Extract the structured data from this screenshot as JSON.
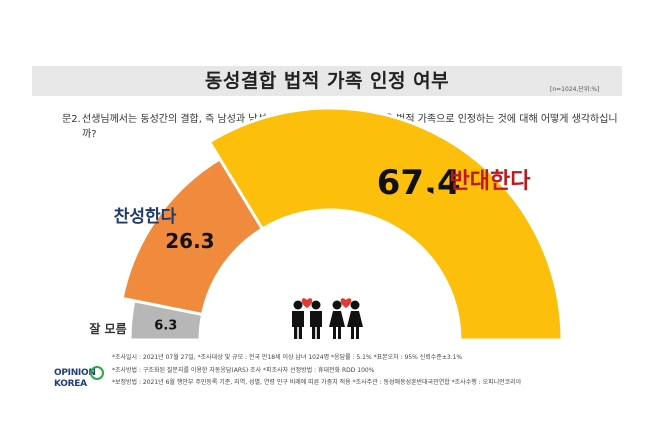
{
  "header": {
    "title": "동성결합 법적 가족 인정 여부",
    "unit_note": "[n=1024,단위:%]"
  },
  "question": {
    "number": "문2.",
    "text": "선생님께서는 동성간의 결합, 즉 남성과 남성 혹은 여성과 여성 등의 결합을 법적 가족으로 인정하는 것에 대해 어떻게 생각하십니까?"
  },
  "chart_data": {
    "type": "pie",
    "subtype": "semi-donut gauge",
    "labels": [
      "잘 모름",
      "찬성한다",
      "반대한다"
    ],
    "values": [
      6.3,
      26.3,
      67.4
    ],
    "value_labels": [
      "6.3",
      "26.3",
      "67.4"
    ],
    "colors": [
      "#b7b7b7",
      "#f08a3c",
      "#fbbf0c"
    ],
    "label_colors": [
      "#333333",
      "#1f3a6e",
      "#c0171a"
    ],
    "start": "left",
    "direction": "clockwise"
  },
  "logo": {
    "line1": "OPINION",
    "line2": "KOREA"
  },
  "footnotes": [
    "*조사일시 : 2021년 07월 27일, *조사대상 및 규모 : 전국 만18세 이상 남녀 1024명 *응답률 : 5.1%  *표본오차 : 95% 신뢰수준±3.1%",
    "*조사방법 : 구조화된 질문지를 이용한 자동응답(ARS) 조사  *피조사자 선정방법 : 휴대전화 RDD 100%",
    "*보정방법 : 2021년 6월 행안부 주민등록 기준, 지역, 성별, 연령 인구 비례에 따른 가중치 적용  *조사주관 : 동성애동성혼반대국민연합  *조사수행 : 오피니언코리아"
  ],
  "icons": [
    "couple-men-icon",
    "couple-women-icon"
  ]
}
